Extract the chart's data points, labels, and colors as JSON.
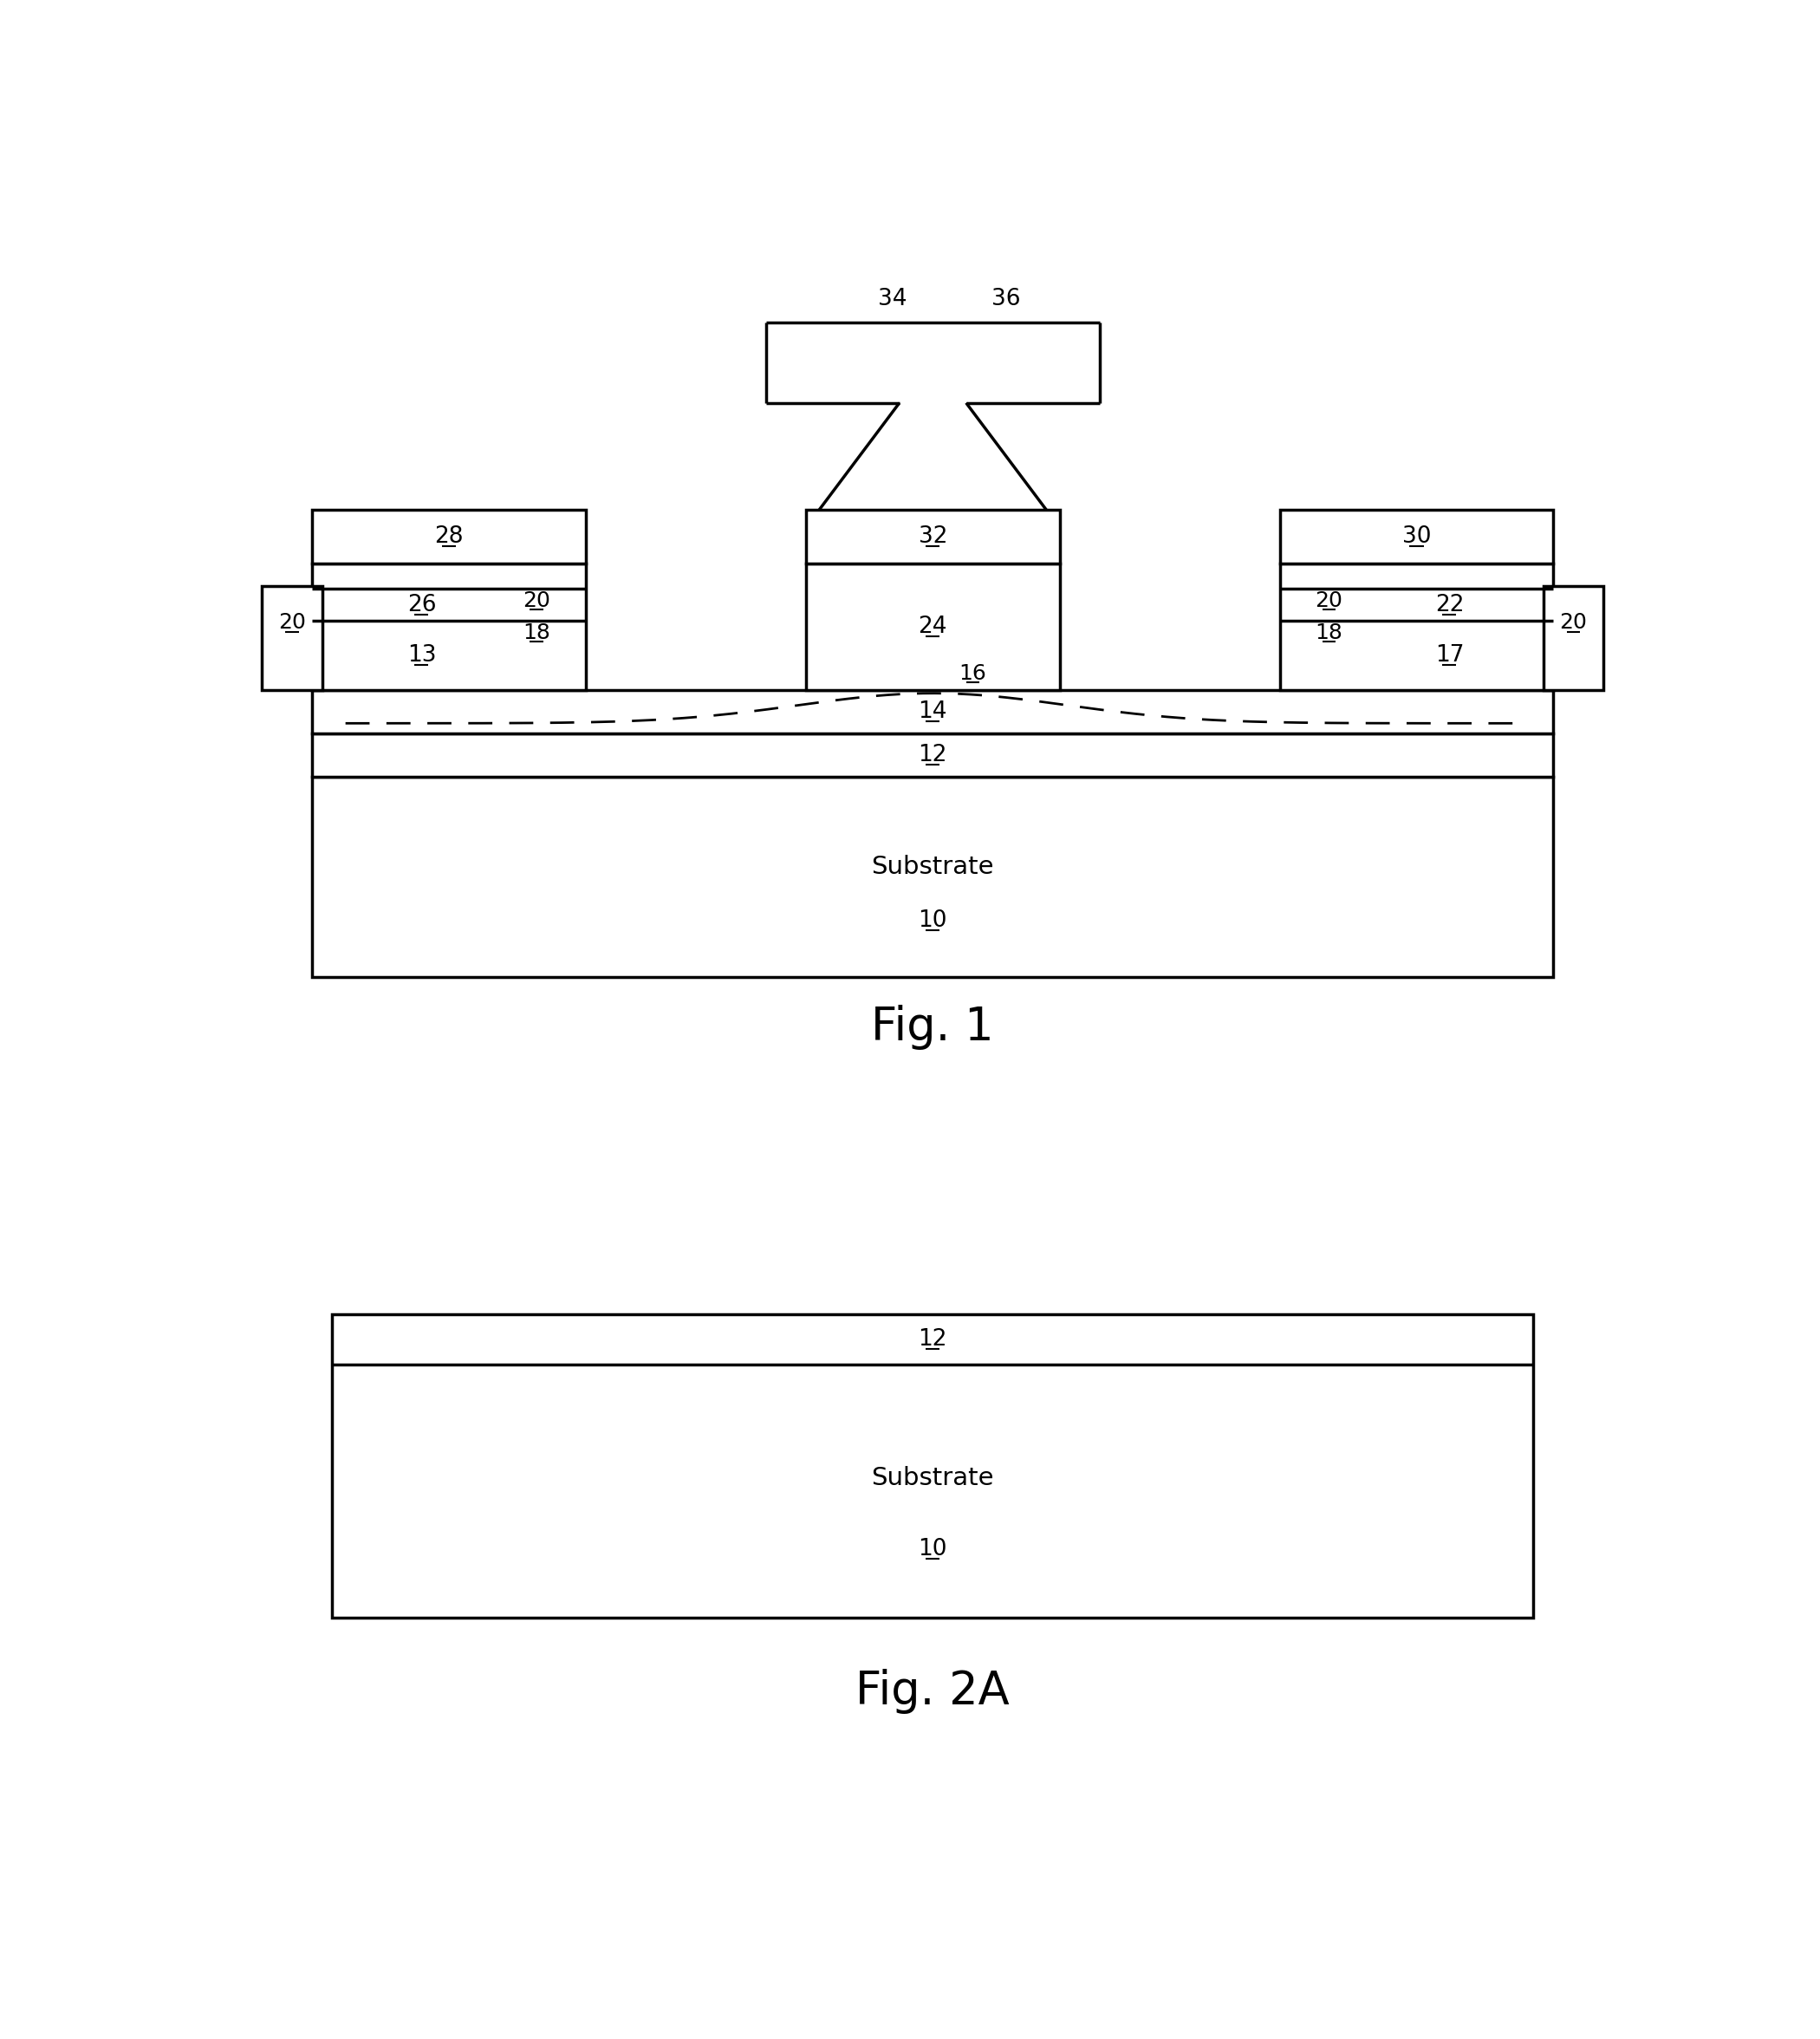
{
  "fig_width": 21.0,
  "fig_height": 23.52,
  "bg_color": "#ffffff",
  "lw_thick": 2.5,
  "lw_thin": 1.5,
  "lw_dash": 2.0,
  "fig1_caption": "Fig. 1",
  "fig2a_caption": "Fig. 2A",
  "label_fontsize": 19,
  "caption_fontsize": 38
}
